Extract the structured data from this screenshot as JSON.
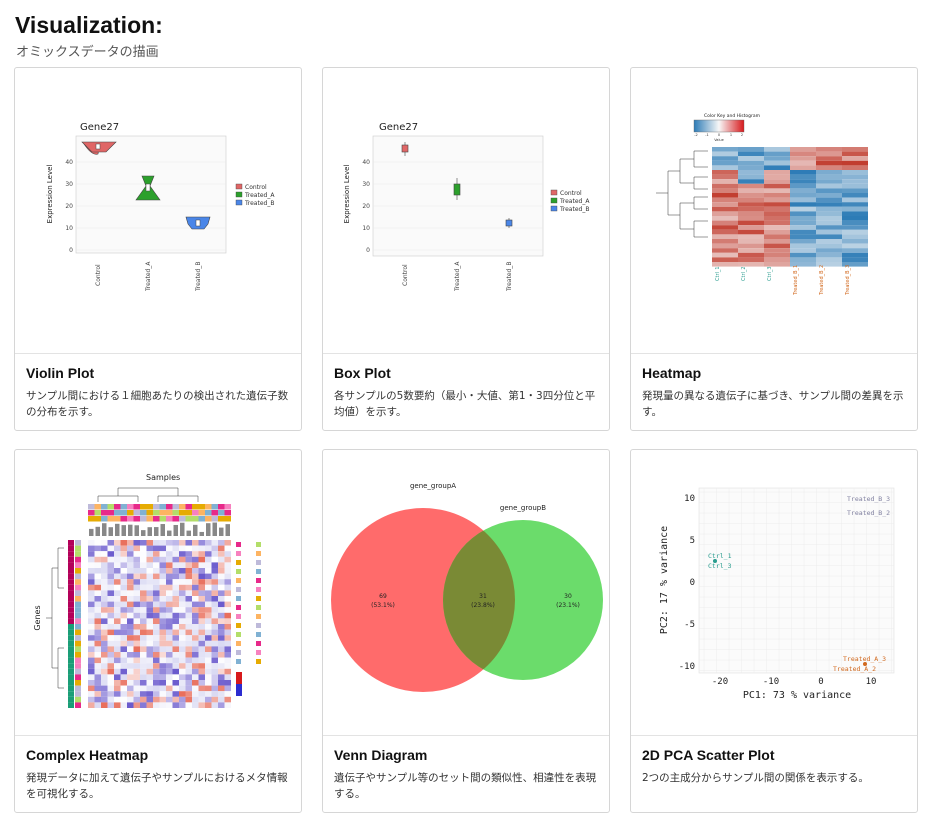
{
  "header": {
    "title": "Visualization:",
    "subtitle": "オミックスデータの描画"
  },
  "cards": [
    {
      "title": "Violin Plot",
      "description": "サンプル間における１細胞あたりの検出された遺伝子数の分布を示す。",
      "plot": {
        "title": "Gene27",
        "ylabel": "Expression Level",
        "yticks": [
          "0",
          "10",
          "20",
          "30",
          "40"
        ],
        "categories": [
          "Control",
          "Treated_A",
          "Treated_B"
        ],
        "legend": [
          "Control",
          "Treated_A",
          "Treated_B"
        ]
      }
    },
    {
      "title": "Box Plot",
      "description": "各サンプルの5数要約（最小・大値、第1・3四分位と平均値）を示す。",
      "plot": {
        "title": "Gene27",
        "ylabel": "Expression Level",
        "yticks": [
          "0",
          "10",
          "20",
          "30",
          "40"
        ],
        "categories": [
          "Control",
          "Treated_A",
          "Treated_B"
        ],
        "legend": [
          "Control",
          "Treated_A",
          "Treated_B"
        ]
      }
    },
    {
      "title": "Heatmap",
      "description": "発現量の異なる遺伝子に基づき、サンプル間の差異を示す。",
      "plot": {
        "key_title": "Color Key and Histogram",
        "key_ticks": [
          "-2",
          "-1",
          "0",
          "1",
          "2"
        ],
        "key_xlabel": "Value",
        "samples": [
          "Ctrl_1",
          "Ctrl_2",
          "Ctrl_3",
          "Treated_B_1",
          "Treated_B_2",
          "Treated_B_3"
        ]
      }
    },
    {
      "title": "Complex Heatmap",
      "description": "発現データに加えて遺伝子やサンプルにおけるメタ情報を可視化する。",
      "plot": {
        "title": "Samples",
        "ylabel": "Genes"
      }
    },
    {
      "title": "Venn Diagram",
      "description": "遺伝子やサンプル等のセット間の類似性、相違性を表現する。",
      "plot": {
        "set_a": "gene_groupA",
        "set_b": "gene_groupB",
        "only_a_count": "69",
        "only_a_pct": "(53.1%)",
        "both_count": "31",
        "both_pct": "(23.8%)",
        "only_b_count": "30",
        "only_b_pct": "(23.1%)"
      }
    },
    {
      "title": "2D PCA Scatter Plot",
      "description": "2つの主成分からサンプル間の関係を表示する。",
      "plot": {
        "xlabel": "PC1:  73 % variance",
        "ylabel": "PC2:  17 % variance",
        "xticks": [
          "-20",
          "-10",
          "0",
          "10"
        ],
        "yticks": [
          "10",
          "5",
          "0",
          "-5",
          "-10"
        ],
        "labels": [
          "Treated_B_3",
          "Treated_B_2",
          "Ctrl_1",
          "Ctrl_3",
          "Treated_A_3",
          "Treated_A_2"
        ]
      }
    }
  ],
  "colors": {
    "control": "#e06666",
    "treated_a": "#2ca02c",
    "treated_b": "#4a86e8",
    "venn_a": "#ff6b6b",
    "venn_b": "#6bdc6b",
    "venn_overlap": "#7a8a35",
    "pca_ctrl": "#2a9d8f",
    "pca_treated_a": "#d2691e",
    "pca_treated_b": "#8080a0"
  }
}
